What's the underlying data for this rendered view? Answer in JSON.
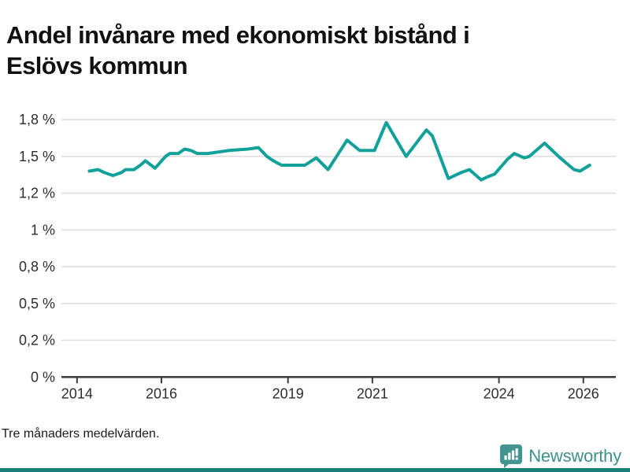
{
  "header": {
    "title_line1": "Andel invånare med ekonomiskt bistånd i",
    "title_line2": "Eslövs kommun",
    "title_full": "Andel invånare med ekonomiskt bistånd i Eslövs kommun"
  },
  "chart_data": {
    "type": "line",
    "title": "Andel invånare med ekonomiskt bistånd i Eslövs kommun",
    "footnote": "Tre månaders medelvärden.",
    "grid": true,
    "legend_position": "none",
    "x_range": [
      2013.63,
      2026.77
    ],
    "y_range": [
      0,
      1.868
    ],
    "x_ticks": [
      {
        "v": 2014,
        "label": "2014"
      },
      {
        "v": 2016,
        "label": "2016"
      },
      {
        "v": 2019,
        "label": "2019"
      },
      {
        "v": 2021,
        "label": "2021"
      },
      {
        "v": 2024,
        "label": "2024"
      },
      {
        "v": 2026,
        "label": "2026"
      }
    ],
    "y_ticks": [
      {
        "v": 0,
        "label": "0 %"
      },
      {
        "v": 0.25,
        "label": "0,2 %"
      },
      {
        "v": 0.5,
        "label": "0,5 %"
      },
      {
        "v": 0.75,
        "label": "0,8 %"
      },
      {
        "v": 1.0,
        "label": "1 %"
      },
      {
        "v": 1.25,
        "label": "1,2 %"
      },
      {
        "v": 1.5,
        "label": "1,5 %"
      },
      {
        "v": 1.75,
        "label": "1,8 %"
      }
    ],
    "series": [
      {
        "name": "Andel invånare med ekonomiskt bistånd",
        "color": "#12a19a",
        "stroke_width": 4,
        "points": [
          [
            2014.29,
            1.4
          ],
          [
            2014.5,
            1.41
          ],
          [
            2014.65,
            1.39
          ],
          [
            2014.85,
            1.37
          ],
          [
            2015.05,
            1.39
          ],
          [
            2015.15,
            1.41
          ],
          [
            2015.35,
            1.41
          ],
          [
            2015.5,
            1.44
          ],
          [
            2015.62,
            1.47
          ],
          [
            2015.85,
            1.42
          ],
          [
            2016.1,
            1.5
          ],
          [
            2016.2,
            1.52
          ],
          [
            2016.4,
            1.52
          ],
          [
            2016.55,
            1.55
          ],
          [
            2016.7,
            1.54
          ],
          [
            2016.85,
            1.52
          ],
          [
            2017.1,
            1.52
          ],
          [
            2017.6,
            1.54
          ],
          [
            2018.05,
            1.55
          ],
          [
            2018.3,
            1.56
          ],
          [
            2018.5,
            1.5
          ],
          [
            2018.65,
            1.47
          ],
          [
            2018.85,
            1.44
          ],
          [
            2019.4,
            1.44
          ],
          [
            2019.67,
            1.49
          ],
          [
            2019.95,
            1.41
          ],
          [
            2020.4,
            1.61
          ],
          [
            2020.7,
            1.54
          ],
          [
            2021.05,
            1.54
          ],
          [
            2021.33,
            1.73
          ],
          [
            2021.8,
            1.5
          ],
          [
            2022.28,
            1.68
          ],
          [
            2022.42,
            1.64
          ],
          [
            2022.8,
            1.35
          ],
          [
            2023.1,
            1.39
          ],
          [
            2023.3,
            1.41
          ],
          [
            2023.58,
            1.34
          ],
          [
            2023.72,
            1.36
          ],
          [
            2023.9,
            1.38
          ],
          [
            2024.2,
            1.48
          ],
          [
            2024.36,
            1.52
          ],
          [
            2024.6,
            1.49
          ],
          [
            2024.72,
            1.5
          ],
          [
            2025.08,
            1.59
          ],
          [
            2025.45,
            1.49
          ],
          [
            2025.78,
            1.41
          ],
          [
            2025.92,
            1.4
          ],
          [
            2026.15,
            1.44
          ]
        ]
      }
    ],
    "colors": {
      "gridline": "#dcdcdc",
      "axis": "#3a3a3a",
      "tick_label": "#2d2d2d"
    }
  },
  "footer": {
    "note": "Tre månaders medelvärden.",
    "brand": {
      "name": "Newsworthy",
      "text_color": "#3e918b",
      "icon_color": "#44948f",
      "bar_color": "#1a7d76"
    }
  }
}
